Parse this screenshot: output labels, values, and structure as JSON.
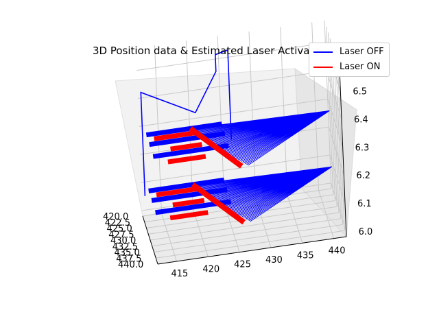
{
  "chart_data": {
    "type": "line3d",
    "title": "3D Position data & Estimated Laser Activation",
    "xlabel": "",
    "ylabel": "",
    "zlabel": "",
    "x_ticks": [
      "415",
      "420",
      "425",
      "430",
      "435",
      "440"
    ],
    "y_ticks": [
      "420.0",
      "422.5",
      "425.0",
      "427.5",
      "430.0",
      "432.5",
      "435.0",
      "437.5",
      "440.0"
    ],
    "z_ticks": [
      "6.0",
      "6.1",
      "6.2",
      "6.3",
      "6.4",
      "6.5"
    ],
    "xlim": [
      412,
      442
    ],
    "ylim": [
      420,
      440
    ],
    "zlim": [
      5.98,
      6.58
    ],
    "grid": true,
    "legend_placement": "top-right",
    "series": [
      {
        "name": "Laser OFF",
        "color": "#0000ff"
      },
      {
        "name": "Laser ON",
        "color": "#ff0000"
      }
    ],
    "layers": [
      {
        "z": 6.275,
        "hatch_x": [
          413,
          442
        ],
        "red_bars_x": [
          [
            414,
            421
          ],
          [
            416,
            421
          ],
          [
            415,
            421
          ]
        ]
      },
      {
        "z": 6.075,
        "hatch_x": [
          413,
          442
        ],
        "red_bars_x": [
          [
            414,
            421
          ],
          [
            416,
            421
          ],
          [
            415,
            421
          ]
        ]
      }
    ],
    "travel_path_off": [
      [
        412.5,
        420,
        6.05
      ],
      [
        412.5,
        420,
        6.42
      ],
      [
        421,
        420,
        6.32
      ],
      [
        424,
        425,
        6.5
      ],
      [
        424,
        425,
        6.56
      ],
      [
        426,
        425,
        6.57
      ],
      [
        426,
        425,
        6.25
      ]
    ]
  }
}
